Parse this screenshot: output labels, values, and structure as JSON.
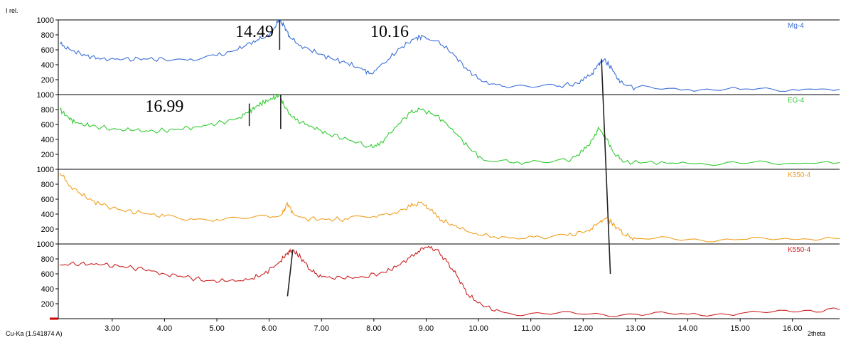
{
  "chart_data": {
    "type": "line",
    "ylabel": "I rel.",
    "xlabel": "2theta",
    "source": "Cu-Ka (1.541874 A)",
    "xlim": [
      1.97,
      16.9
    ],
    "ylim": [
      0,
      1000
    ],
    "x_ticks": [
      "3.00",
      "4.00",
      "5.00",
      "6.00",
      "7.00",
      "8.00",
      "9.00",
      "10.00",
      "11.00",
      "12.00",
      "13.00",
      "14.00",
      "15.00",
      "16.00"
    ],
    "y_ticks": [
      "200",
      "400",
      "600",
      "800",
      "1000"
    ],
    "grid": false,
    "panels": [
      {
        "name": "Mg-4",
        "color": "#3a6fd8",
        "points": [
          [
            2.0,
            680
          ],
          [
            2.2,
            600
          ],
          [
            2.5,
            520
          ],
          [
            2.8,
            480
          ],
          [
            3.2,
            470
          ],
          [
            3.6,
            480
          ],
          [
            4.0,
            470
          ],
          [
            4.5,
            480
          ],
          [
            5.0,
            520
          ],
          [
            5.4,
            600
          ],
          [
            5.7,
            720
          ],
          [
            5.9,
            760
          ],
          [
            6.05,
            820
          ],
          [
            6.18,
            1000
          ],
          [
            6.28,
            930
          ],
          [
            6.4,
            760
          ],
          [
            6.6,
            660
          ],
          [
            6.9,
            560
          ],
          [
            7.2,
            480
          ],
          [
            7.5,
            420
          ],
          [
            7.8,
            330
          ],
          [
            7.95,
            280
          ],
          [
            8.2,
            420
          ],
          [
            8.5,
            620
          ],
          [
            8.8,
            760
          ],
          [
            8.95,
            780
          ],
          [
            9.2,
            720
          ],
          [
            9.5,
            560
          ],
          [
            9.8,
            320
          ],
          [
            10.1,
            170
          ],
          [
            10.5,
            110
          ],
          [
            11.0,
            100
          ],
          [
            11.5,
            110
          ],
          [
            11.9,
            150
          ],
          [
            12.15,
            260
          ],
          [
            12.3,
            420
          ],
          [
            12.4,
            470
          ],
          [
            12.55,
            350
          ],
          [
            12.7,
            160
          ],
          [
            13.0,
            90
          ],
          [
            14.0,
            70
          ],
          [
            15.0,
            70
          ],
          [
            16.0,
            70
          ],
          [
            16.9,
            70
          ]
        ]
      },
      {
        "name": "EG-4",
        "color": "#33cc33",
        "points": [
          [
            2.0,
            800
          ],
          [
            2.15,
            700
          ],
          [
            2.3,
            620
          ],
          [
            2.6,
            580
          ],
          [
            3.0,
            540
          ],
          [
            3.4,
            520
          ],
          [
            3.8,
            510
          ],
          [
            4.2,
            530
          ],
          [
            4.6,
            570
          ],
          [
            5.0,
            610
          ],
          [
            5.4,
            680
          ],
          [
            5.6,
            760
          ],
          [
            5.75,
            840
          ],
          [
            5.9,
            900
          ],
          [
            6.05,
            940
          ],
          [
            6.2,
            1000
          ],
          [
            6.3,
            820
          ],
          [
            6.5,
            660
          ],
          [
            6.8,
            580
          ],
          [
            7.1,
            480
          ],
          [
            7.5,
            400
          ],
          [
            7.9,
            310
          ],
          [
            8.1,
            320
          ],
          [
            8.4,
            560
          ],
          [
            8.7,
            760
          ],
          [
            8.9,
            800
          ],
          [
            9.2,
            720
          ],
          [
            9.5,
            540
          ],
          [
            9.8,
            300
          ],
          [
            10.1,
            120
          ],
          [
            10.6,
            90
          ],
          [
            11.2,
            100
          ],
          [
            11.7,
            110
          ],
          [
            12.0,
            240
          ],
          [
            12.2,
            420
          ],
          [
            12.3,
            550
          ],
          [
            12.45,
            400
          ],
          [
            12.6,
            200
          ],
          [
            12.8,
            100
          ],
          [
            13.2,
            90
          ],
          [
            14.0,
            80
          ],
          [
            15.0,
            80
          ],
          [
            16.0,
            80
          ],
          [
            16.9,
            90
          ]
        ]
      },
      {
        "name": "K350-4",
        "color": "#f0a020",
        "points": [
          [
            2.0,
            950
          ],
          [
            2.2,
            780
          ],
          [
            2.5,
            620
          ],
          [
            2.8,
            520
          ],
          [
            3.2,
            450
          ],
          [
            3.6,
            410
          ],
          [
            4.0,
            370
          ],
          [
            4.5,
            340
          ],
          [
            5.0,
            330
          ],
          [
            5.5,
            340
          ],
          [
            6.0,
            360
          ],
          [
            6.25,
            400
          ],
          [
            6.35,
            550
          ],
          [
            6.45,
            420
          ],
          [
            6.7,
            340
          ],
          [
            7.1,
            330
          ],
          [
            7.5,
            330
          ],
          [
            8.0,
            370
          ],
          [
            8.4,
            420
          ],
          [
            8.7,
            500
          ],
          [
            8.9,
            560
          ],
          [
            9.05,
            470
          ],
          [
            9.3,
            320
          ],
          [
            9.6,
            220
          ],
          [
            10.0,
            120
          ],
          [
            10.6,
            80
          ],
          [
            11.2,
            90
          ],
          [
            11.7,
            110
          ],
          [
            12.1,
            180
          ],
          [
            12.3,
            280
          ],
          [
            12.45,
            350
          ],
          [
            12.6,
            250
          ],
          [
            12.8,
            120
          ],
          [
            13.0,
            70
          ],
          [
            14.0,
            60
          ],
          [
            15.0,
            60
          ],
          [
            16.0,
            60
          ],
          [
            16.9,
            70
          ]
        ]
      },
      {
        "name": "K550-4",
        "color": "#cc2222",
        "points": [
          [
            2.0,
            720
          ],
          [
            2.4,
            740
          ],
          [
            2.8,
            720
          ],
          [
            3.2,
            700
          ],
          [
            3.6,
            660
          ],
          [
            4.0,
            600
          ],
          [
            4.4,
            560
          ],
          [
            4.8,
            510
          ],
          [
            5.2,
            500
          ],
          [
            5.6,
            520
          ],
          [
            5.9,
            600
          ],
          [
            6.2,
            760
          ],
          [
            6.35,
            880
          ],
          [
            6.45,
            920
          ],
          [
            6.6,
            820
          ],
          [
            6.8,
            640
          ],
          [
            7.0,
            560
          ],
          [
            7.4,
            540
          ],
          [
            7.8,
            560
          ],
          [
            8.2,
            620
          ],
          [
            8.5,
            720
          ],
          [
            8.8,
            880
          ],
          [
            9.0,
            960
          ],
          [
            9.2,
            920
          ],
          [
            9.4,
            760
          ],
          [
            9.6,
            560
          ],
          [
            9.8,
            320
          ],
          [
            10.1,
            160
          ],
          [
            10.5,
            80
          ],
          [
            11.0,
            70
          ],
          [
            12.0,
            60
          ],
          [
            13.0,
            60
          ],
          [
            14.0,
            60
          ],
          [
            15.0,
            70
          ],
          [
            16.0,
            90
          ],
          [
            16.9,
            120
          ]
        ]
      }
    ],
    "annotations": [
      {
        "text": "14.49",
        "x": 5.72,
        "y": 1000,
        "panel": 0
      },
      {
        "text": "10.16",
        "x": 8.3,
        "y": 1000,
        "panel": 0
      },
      {
        "text": "16.99",
        "x": 4.0,
        "y": 1000,
        "panel": 1
      }
    ],
    "marker_lines": [
      {
        "panel": 0,
        "x1": 6.2,
        "y1": 1000,
        "x2": 6.2,
        "y2": 600
      },
      {
        "panel": 1,
        "x1": 5.62,
        "y1": 880,
        "x2": 5.62,
        "y2": 580
      },
      {
        "panel": 1,
        "x1": 6.22,
        "y1": 1000,
        "x2": 6.22,
        "y2": 540
      },
      {
        "panel": 3,
        "x1": 6.45,
        "y1": 920,
        "x2": 6.35,
        "y2": 300
      },
      {
        "cross": true,
        "x1": 12.35,
        "y1_panel": 0,
        "y1": 470,
        "x2": 12.52,
        "y2_panel": 3,
        "y2": 600
      }
    ]
  }
}
